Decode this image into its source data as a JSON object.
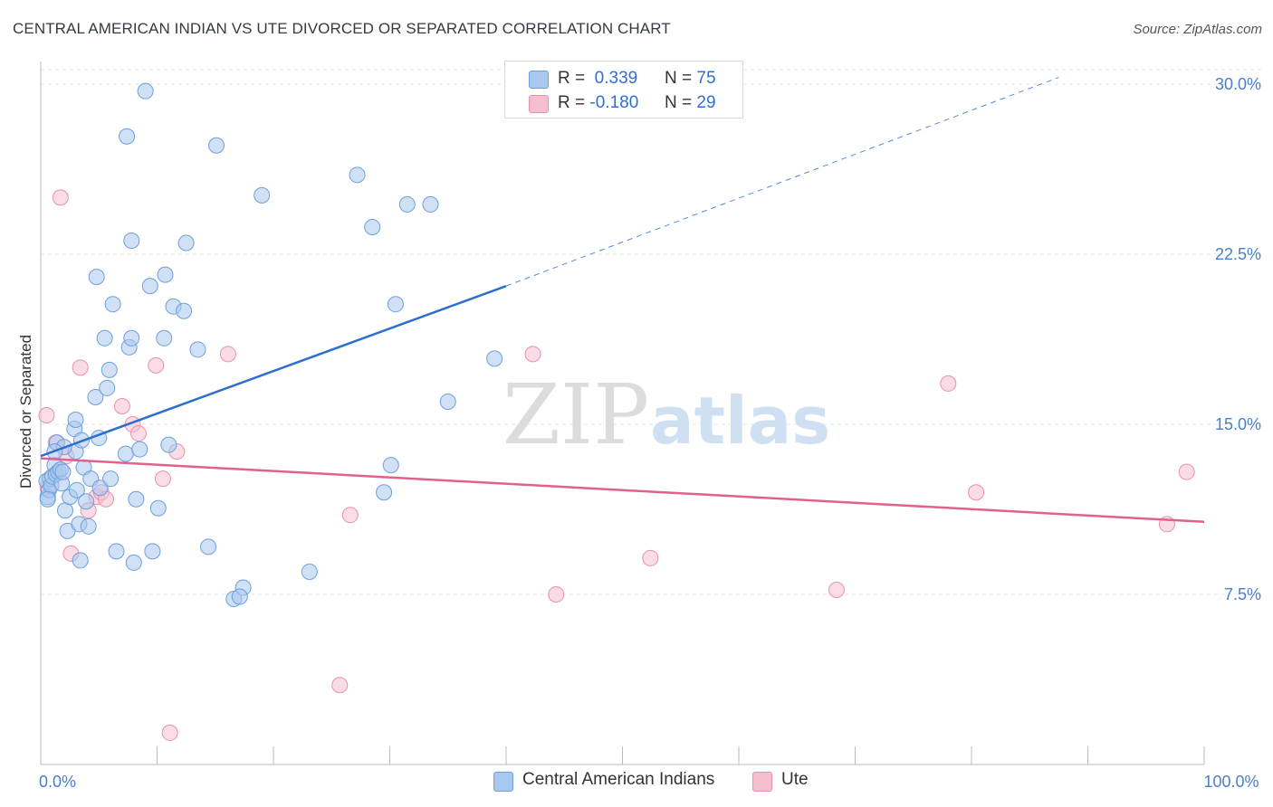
{
  "title": "CENTRAL AMERICAN INDIAN VS UTE DIVORCED OR SEPARATED CORRELATION CHART",
  "source": "Source: ZipAtlas.com",
  "watermark": {
    "zip": "ZIP",
    "atlas": "atlas"
  },
  "colors": {
    "blue_fill": "#a9c8ef",
    "blue_stroke": "#6d9fdc",
    "blue_line": "#2b6fcf",
    "pink_fill": "#f6bfd0",
    "pink_stroke": "#e891ad",
    "pink_line": "#e0608e",
    "axis_text": "#4a80c8",
    "grid": "#e4e4e4"
  },
  "legend": {
    "rows": [
      {
        "r_label": "R =",
        "r_value": "0.339",
        "n_label": "N =",
        "n_value": "75",
        "color": "#a9c8ef",
        "stroke": "#6d9fdc"
      },
      {
        "r_label": "R =",
        "r_value": "-0.180",
        "n_label": "N =",
        "n_value": "29",
        "color": "#f6bfd0",
        "stroke": "#e891ad"
      }
    ]
  },
  "bottom_legend": [
    {
      "label": "Central American Indians",
      "color": "#a9c8ef",
      "stroke": "#6d9fdc"
    },
    {
      "label": "Ute",
      "color": "#f6bfd0",
      "stroke": "#e891ad"
    }
  ],
  "chart_data": {
    "type": "scatter",
    "ylabel": "Divorced or Separated",
    "xlabel": "",
    "xlim": [
      0,
      100
    ],
    "ylim": [
      0,
      31
    ],
    "x_tick_labels": [
      {
        "value": 0,
        "label": "0.0%"
      },
      {
        "value": 100,
        "label": "100.0%"
      }
    ],
    "y_ticks": [
      {
        "value": 7.5,
        "label": "7.5%"
      },
      {
        "value": 15.0,
        "label": "15.0%"
      },
      {
        "value": 22.5,
        "label": "22.5%"
      },
      {
        "value": 30.0,
        "label": "30.0%"
      }
    ],
    "grid": true,
    "series": [
      {
        "name": "Central American Indians",
        "trend": {
          "x_start": 0,
          "y_start": 13.6,
          "x_solid_end": 40,
          "y_solid_end": 21.1,
          "x_dash_end": 87.5,
          "y_dash_end": 30.3
        },
        "points": [
          [
            0.5,
            12.5
          ],
          [
            0.6,
            11.8
          ],
          [
            0.7,
            12.1
          ],
          [
            0.8,
            12.6
          ],
          [
            0.9,
            12.3
          ],
          [
            1.0,
            12.7
          ],
          [
            1.2,
            13.2
          ],
          [
            1.3,
            12.8
          ],
          [
            1.4,
            14.2
          ],
          [
            1.5,
            12.9
          ],
          [
            1.7,
            13.0
          ],
          [
            1.8,
            12.4
          ],
          [
            1.9,
            12.9
          ],
          [
            2.1,
            11.2
          ],
          [
            2.3,
            10.3
          ],
          [
            2.5,
            11.8
          ],
          [
            2.9,
            14.8
          ],
          [
            3.0,
            13.8
          ],
          [
            3.1,
            12.1
          ],
          [
            3.3,
            10.6
          ],
          [
            3.4,
            9.0
          ],
          [
            3.5,
            14.3
          ],
          [
            3.7,
            13.1
          ],
          [
            3.9,
            11.6
          ],
          [
            4.1,
            10.5
          ],
          [
            4.3,
            12.6
          ],
          [
            4.7,
            16.2
          ],
          [
            5.0,
            14.4
          ],
          [
            5.1,
            12.2
          ],
          [
            5.5,
            18.8
          ],
          [
            5.7,
            16.6
          ],
          [
            5.9,
            17.4
          ],
          [
            6.0,
            12.6
          ],
          [
            6.5,
            9.4
          ],
          [
            7.3,
            13.7
          ],
          [
            7.6,
            18.4
          ],
          [
            7.8,
            18.8
          ],
          [
            8.0,
            8.9
          ],
          [
            8.2,
            11.7
          ],
          [
            8.5,
            13.9
          ],
          [
            9.6,
            9.4
          ],
          [
            10.1,
            11.3
          ],
          [
            11.0,
            14.1
          ],
          [
            11.4,
            20.2
          ],
          [
            12.3,
            20.0
          ],
          [
            13.5,
            18.3
          ],
          [
            14.4,
            9.6
          ],
          [
            15.1,
            27.3
          ],
          [
            16.6,
            7.3
          ],
          [
            17.4,
            7.8
          ],
          [
            17.1,
            7.4
          ],
          [
            19.0,
            25.1
          ],
          [
            23.1,
            8.5
          ],
          [
            27.2,
            26.0
          ],
          [
            28.5,
            23.7
          ],
          [
            29.5,
            12.0
          ],
          [
            30.1,
            13.2
          ],
          [
            30.5,
            20.3
          ],
          [
            31.5,
            24.7
          ],
          [
            33.5,
            24.7
          ],
          [
            35.0,
            16.0
          ],
          [
            39.0,
            17.9
          ],
          [
            9.0,
            29.7
          ],
          [
            7.4,
            27.7
          ],
          [
            7.8,
            23.1
          ],
          [
            12.5,
            23.0
          ],
          [
            4.8,
            21.5
          ],
          [
            9.4,
            21.1
          ],
          [
            10.7,
            21.6
          ],
          [
            6.2,
            20.3
          ],
          [
            10.6,
            18.8
          ],
          [
            3.0,
            15.2
          ],
          [
            2.0,
            14.0
          ],
          [
            0.6,
            11.7
          ],
          [
            1.2,
            13.8
          ]
        ]
      },
      {
        "name": "Ute",
        "trend": {
          "x_start": 0,
          "y_start": 13.5,
          "x_end": 100,
          "y_end": 10.7
        },
        "points": [
          [
            0.5,
            15.4
          ],
          [
            0.6,
            12.2
          ],
          [
            1.3,
            14.2
          ],
          [
            1.7,
            25.0
          ],
          [
            2.2,
            13.6
          ],
          [
            2.6,
            9.3
          ],
          [
            3.4,
            17.5
          ],
          [
            4.1,
            11.2
          ],
          [
            4.8,
            11.8
          ],
          [
            5.2,
            12.0
          ],
          [
            5.6,
            11.7
          ],
          [
            7.0,
            15.8
          ],
          [
            7.9,
            15.0
          ],
          [
            8.4,
            14.6
          ],
          [
            9.9,
            17.6
          ],
          [
            10.5,
            12.6
          ],
          [
            11.1,
            1.4
          ],
          [
            11.7,
            13.8
          ],
          [
            16.1,
            18.1
          ],
          [
            25.7,
            3.5
          ],
          [
            26.6,
            11.0
          ],
          [
            42.3,
            18.1
          ],
          [
            44.3,
            7.5
          ],
          [
            52.4,
            9.1
          ],
          [
            68.4,
            7.7
          ],
          [
            78.0,
            16.8
          ],
          [
            80.4,
            12.0
          ],
          [
            96.8,
            10.6
          ],
          [
            98.5,
            12.9
          ]
        ]
      }
    ]
  }
}
